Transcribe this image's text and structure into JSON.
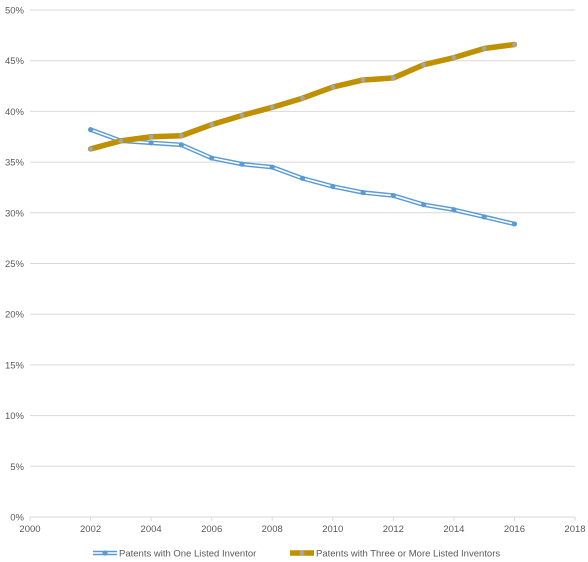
{
  "chart_data": {
    "type": "line",
    "title": "",
    "xlabel": "",
    "ylabel": "",
    "xlim": [
      2000,
      2018
    ],
    "ylim": [
      0,
      50
    ],
    "x_ticks": [
      2000,
      2002,
      2004,
      2006,
      2008,
      2010,
      2012,
      2014,
      2016,
      2018
    ],
    "x_tick_labels": [
      "2000",
      "2002",
      "2004",
      "2006",
      "2008",
      "2010",
      "2012",
      "2014",
      "2016",
      "2018"
    ],
    "y_ticks": [
      0,
      5,
      10,
      15,
      20,
      25,
      30,
      35,
      40,
      45,
      50
    ],
    "y_tick_labels": [
      "0%",
      "5%",
      "10%",
      "15%",
      "20%",
      "25%",
      "30%",
      "35%",
      "40%",
      "45%",
      "50%"
    ],
    "grid": "horizontal",
    "legend_position": "bottom",
    "x": [
      2002,
      2003,
      2004,
      2005,
      2006,
      2007,
      2008,
      2009,
      2010,
      2011,
      2012,
      2013,
      2014,
      2015,
      2016
    ],
    "series": [
      {
        "name": "Patents with One Listed Inventor",
        "color": "#5b9bd5",
        "style": "double-line",
        "values": [
          38.2,
          37.1,
          36.9,
          36.7,
          35.4,
          34.8,
          34.5,
          33.4,
          32.6,
          32.0,
          31.7,
          30.8,
          30.3,
          29.6,
          28.9
        ]
      },
      {
        "name": "Patents with Three or More Listed Inventors",
        "color": "#bf9000",
        "marker_color": "#a5a5a5",
        "style": "thick",
        "values": [
          36.3,
          37.1,
          37.5,
          37.6,
          38.7,
          39.6,
          40.4,
          41.3,
          42.4,
          43.1,
          43.3,
          44.6,
          45.3,
          46.2,
          46.6
        ]
      }
    ]
  }
}
